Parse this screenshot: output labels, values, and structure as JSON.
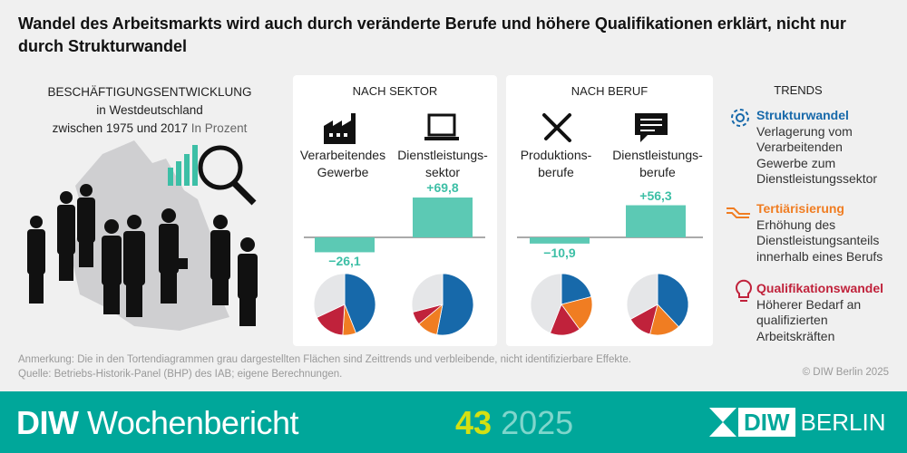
{
  "title": "Wandel des Arbeitsmarkts wird auch durch veränderte Berufe und höhere Qualifikationen erklärt, nicht nur durch Strukturwandel",
  "left": {
    "line1": "BESCHÄFTIGUNGSENTWICKLUNG",
    "line2": "in Westdeutschland",
    "line3": "zwischen 1975 und 2017",
    "unit": "In Prozent"
  },
  "colors": {
    "strukturwandel": "#1769aa",
    "tertiaerisierung": "#f07d22",
    "qualifikationswandel": "#c0223b",
    "rest": "#e5e6e8",
    "bar": "#5cc9b4",
    "value": "#3dbfa6",
    "footer": "#00a79a",
    "issue": "#d4e012"
  },
  "chart_data": [
    {
      "type": "bar",
      "title": "NACH SEKTOR",
      "categories": [
        "Verarbeitendes Gewerbe",
        "Dienstleistungssektor"
      ],
      "values": [
        -26.1,
        69.8
      ],
      "labels": [
        "−26,1",
        "+69,8"
      ],
      "icons": [
        "factory-icon",
        "laptop-icon"
      ]
    },
    {
      "type": "bar",
      "title": "NACH BERUF",
      "categories": [
        "Produktionsberufe",
        "Dienstleistungsberufe"
      ],
      "values": [
        -10.9,
        56.3
      ],
      "labels": [
        "−10,9",
        "+56,3"
      ],
      "icons": [
        "tools-icon",
        "speech-bubble-icon"
      ]
    },
    {
      "type": "pie",
      "series_order": [
        "Strukturwandel",
        "Tertiärisierung",
        "Qualifikationswandel",
        "Zeittrends und verbleibende Effekte"
      ],
      "pies": [
        {
          "category": "Verarbeitendes Gewerbe",
          "values": [
            44,
            7,
            17,
            32
          ]
        },
        {
          "category": "Dienstleistungssektor",
          "values": [
            53,
            11,
            7,
            29
          ]
        },
        {
          "category": "Produktionsberufe",
          "values": [
            21,
            19,
            16,
            44
          ]
        },
        {
          "category": "Dienstleistungsberufe",
          "values": [
            38,
            16,
            13,
            33
          ]
        }
      ]
    }
  ],
  "cats": {
    "c1a": "Verarbeitendes",
    "c1b": "Gewerbe",
    "c2a": "Dienstleistungs-",
    "c2b": "sektor",
    "c3a": "Produktions-",
    "c3b": "berufe",
    "c4a": "Dienstleistungs-",
    "c4b": "berufe"
  },
  "trends": {
    "title": "TRENDS",
    "items": [
      {
        "icon": "gear-icon",
        "heading": "Strukturwandel",
        "lines": [
          "Verlagerung vom",
          "Verarbeitenden",
          "Gewerbe zum",
          "Dienstleistungssektor"
        ]
      },
      {
        "icon": "hand-icon",
        "heading": "Tertiärisierung",
        "lines": [
          "Erhöhung des",
          "Dienstleistungsanteils",
          "innerhalb eines Berufs"
        ]
      },
      {
        "icon": "lightbulb-icon",
        "heading": "Qualifikationswandel",
        "lines": [
          "Höherer Bedarf an",
          "qualifizierten",
          "Arbeitskräften"
        ]
      }
    ]
  },
  "notes": {
    "note": "Anmerkung: Die in den Tortendiagrammen grau dargestellten Flächen sind Zeittrends und verbleibende, nicht identifizierbare Effekte.",
    "source": "Quelle: Betriebs-Historik-Panel (BHP) des IAB; eigene Berechnungen.",
    "copyright": "© DIW Berlin 2025"
  },
  "footer": {
    "brand_bold": "DIW",
    "brand": "Wochenbericht",
    "issue": "43",
    "year": "2025",
    "logo_box": "DIW",
    "logo_text": "BERLIN"
  }
}
